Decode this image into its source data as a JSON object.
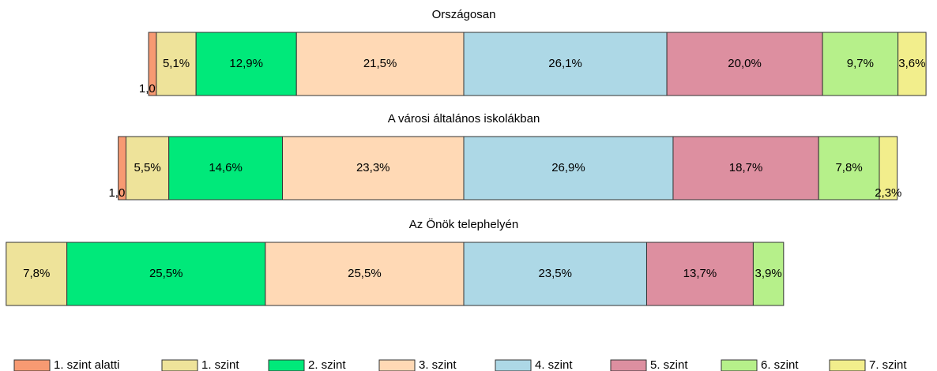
{
  "chart_data": {
    "type": "bar",
    "categories": [
      "Országosan",
      "A városi általános iskolákban",
      "Az Önök telephelyén"
    ],
    "series": [
      {
        "name": "1. szint alatti",
        "color": "#f79a72",
        "values": [
          1.0,
          1.0,
          0
        ],
        "value_labels": [
          "1,0%",
          "1,0%",
          null
        ]
      },
      {
        "name": "1. szint",
        "color": "#eee39a",
        "values": [
          5.1,
          5.5,
          7.8
        ],
        "value_labels": [
          "5,1%",
          "5,5%",
          "7,8%"
        ]
      },
      {
        "name": "2. szint",
        "color": "#00e97a",
        "values": [
          12.9,
          14.6,
          25.5
        ],
        "value_labels": [
          "12,9%",
          "14,6%",
          "25,5%"
        ]
      },
      {
        "name": "3. szint",
        "color": "#ffd9b5",
        "values": [
          21.5,
          23.3,
          25.5
        ],
        "value_labels": [
          "21,5%",
          "23,3%",
          "25,5%"
        ]
      },
      {
        "name": "4. szint",
        "color": "#add8e6",
        "values": [
          26.1,
          26.9,
          23.5
        ],
        "value_labels": [
          "26,1%",
          "26,9%",
          "23,5%"
        ]
      },
      {
        "name": "5. szint",
        "color": "#dd8fa0",
        "values": [
          20.0,
          18.7,
          13.7
        ],
        "value_labels": [
          "20,0%",
          "18,7%",
          "13,7%"
        ]
      },
      {
        "name": "6. szint",
        "color": "#b6f08a",
        "values": [
          9.7,
          7.8,
          3.9
        ],
        "value_labels": [
          "9,7%",
          "7,8%",
          "3,9%"
        ]
      },
      {
        "name": "7. szint",
        "color": "#f2ee8c",
        "values": [
          3.6,
          2.3,
          0
        ],
        "value_labels": [
          "3,6%",
          "2,3%",
          null
        ]
      }
    ]
  }
}
